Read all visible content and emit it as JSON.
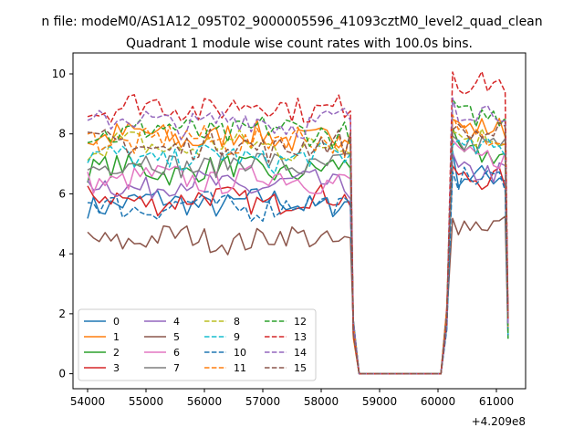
{
  "chart_data": {
    "type": "line",
    "suptitle": "n file: modeM0/AS1A12_095T02_9000005596_41093cztM0_level2_quad_clean",
    "title": "Quadrant 1 module wise count rates with 100.0s bins.",
    "xlabel": "",
    "ylabel": "",
    "x_offset_label": "+4.209e8",
    "xlim": [
      53750,
      61500
    ],
    "ylim": [
      -0.5,
      10.7
    ],
    "x_ticks": [
      54000,
      55000,
      56000,
      57000,
      58000,
      59000,
      60000,
      61000
    ],
    "x_tick_labels": [
      "54000",
      "55000",
      "56000",
      "57000",
      "58000",
      "59000",
      "60000",
      "61000"
    ],
    "y_ticks": [
      0,
      2,
      4,
      6,
      8,
      10
    ],
    "y_tick_labels": [
      "0",
      "2",
      "4",
      "6",
      "8",
      "10"
    ],
    "grid": false,
    "legend": {
      "placement": "lower-left",
      "columns": 4
    },
    "segments": {
      "active1": [
        54000,
        58500
      ],
      "gap": [
        58650,
        60050
      ],
      "active2": [
        60250,
        61150
      ]
    },
    "series": [
      {
        "name": "0",
        "color": "#1f77b4",
        "dash": false,
        "level1": 5.7,
        "level2": 6.6
      },
      {
        "name": "1",
        "color": "#ff7f0e",
        "dash": false,
        "level1": 7.9,
        "level2": 8.2
      },
      {
        "name": "2",
        "color": "#2ca02c",
        "dash": false,
        "level1": 6.8,
        "level2": 7.3
      },
      {
        "name": "3",
        "color": "#d62728",
        "dash": false,
        "level1": 5.8,
        "level2": 6.5
      },
      {
        "name": "4",
        "color": "#9467bd",
        "dash": false,
        "level1": 6.3,
        "level2": 6.7
      },
      {
        "name": "5",
        "color": "#8c564b",
        "dash": false,
        "level1": 4.5,
        "level2": 5.0
      },
      {
        "name": "6",
        "color": "#e377c2",
        "dash": false,
        "level1": 6.5,
        "level2": 7.2
      },
      {
        "name": "7",
        "color": "#7f7f7f",
        "dash": false,
        "level1": 7.0,
        "level2": 7.6
      },
      {
        "name": "8",
        "color": "#bcbd22",
        "dash": true,
        "level1": 7.6,
        "level2": 7.9
      },
      {
        "name": "9",
        "color": "#17becf",
        "dash": true,
        "level1": 7.2,
        "level2": 7.5
      },
      {
        "name": "10",
        "color": "#1f77b4",
        "dash": true,
        "level1": 5.6,
        "level2": 6.5
      },
      {
        "name": "11",
        "color": "#ff7f0e",
        "dash": true,
        "level1": 7.8,
        "level2": 8.0
      },
      {
        "name": "12",
        "color": "#2ca02c",
        "dash": true,
        "level1": 8.1,
        "level2": 8.6
      },
      {
        "name": "13",
        "color": "#d62728",
        "dash": true,
        "level1": 8.9,
        "level2": 9.7
      },
      {
        "name": "14",
        "color": "#9467bd",
        "dash": true,
        "level1": 8.4,
        "level2": 8.8
      },
      {
        "name": "15",
        "color": "#8c564b",
        "dash": true,
        "level1": 7.6,
        "level2": 8.0
      }
    ]
  }
}
